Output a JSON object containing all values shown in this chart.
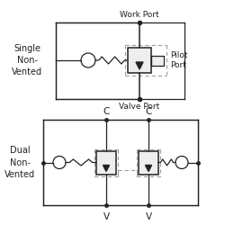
{
  "bg_color": "#ffffff",
  "line_color": "#222222",
  "dashed_color": "#999999",
  "title1": "Single\nNon-\nVented",
  "title2": "Dual\nNon-\nVented",
  "label_work_port": "Work Port",
  "label_valve_port": "Valve Port",
  "label_pilot_port": "Pilot\nPort",
  "label_C1": "C",
  "label_C2": "C",
  "label_V1": "V",
  "label_V2": "V"
}
